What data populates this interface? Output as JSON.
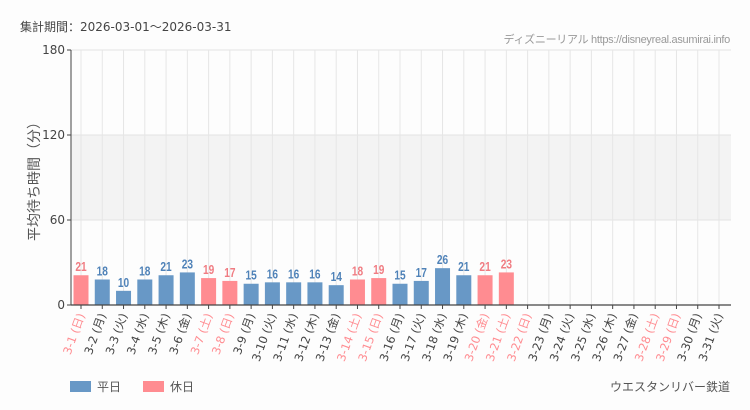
{
  "header": {
    "period_label": "集計期間：2026-03-01～2026-03-31",
    "credit": "ディズニーリアル https://disneyreal.asumirai.info"
  },
  "footer": {
    "attraction": "ウエスタンリバー鉄道"
  },
  "colors": {
    "weekday": "#6898c6",
    "holiday": "#ff8c91",
    "weekday_label": "#4f82b8",
    "holiday_label": "#f07c82",
    "axis_text": "#444444"
  },
  "chart_data": {
    "type": "bar",
    "title": "",
    "ylabel": "平均待ち時間（分）",
    "xlabel": "",
    "ylim": [
      0,
      180
    ],
    "yticks": [
      0,
      60,
      120,
      180
    ],
    "grid": true,
    "shaded_band": [
      60,
      120
    ],
    "legend": [
      {
        "name": "平日",
        "key": "weekday"
      },
      {
        "name": "休日",
        "key": "holiday"
      }
    ],
    "legend_position": "bottom-left",
    "categories": [
      "3-1 (日)",
      "3-2 (月)",
      "3-3 (火)",
      "3-4 (水)",
      "3-5 (木)",
      "3-6 (金)",
      "3-7 (土)",
      "3-8 (日)",
      "3-9 (月)",
      "3-10 (火)",
      "3-11 (水)",
      "3-12 (木)",
      "3-13 (金)",
      "3-14 (土)",
      "3-15 (日)",
      "3-16 (月)",
      "3-17 (火)",
      "3-18 (水)",
      "3-19 (木)",
      "3-20 (金)",
      "3-21 (土)",
      "3-22 (日)",
      "3-23 (月)",
      "3-24 (火)",
      "3-25 (水)",
      "3-26 (木)",
      "3-27 (金)",
      "3-28 (土)",
      "3-29 (日)",
      "3-30 (月)",
      "3-31 (火)"
    ],
    "day_type": [
      "holiday",
      "weekday",
      "weekday",
      "weekday",
      "weekday",
      "weekday",
      "holiday",
      "holiday",
      "weekday",
      "weekday",
      "weekday",
      "weekday",
      "weekday",
      "holiday",
      "holiday",
      "weekday",
      "weekday",
      "weekday",
      "weekday",
      "holiday",
      "holiday",
      "holiday",
      "weekday",
      "weekday",
      "weekday",
      "weekday",
      "weekday",
      "holiday",
      "holiday",
      "weekday",
      "weekday"
    ],
    "values": [
      21,
      18,
      10,
      18,
      21,
      23,
      19,
      17,
      15,
      16,
      16,
      16,
      14,
      18,
      19,
      15,
      17,
      26,
      21,
      21,
      23,
      null,
      null,
      null,
      null,
      null,
      null,
      null,
      null,
      null,
      null
    ]
  }
}
